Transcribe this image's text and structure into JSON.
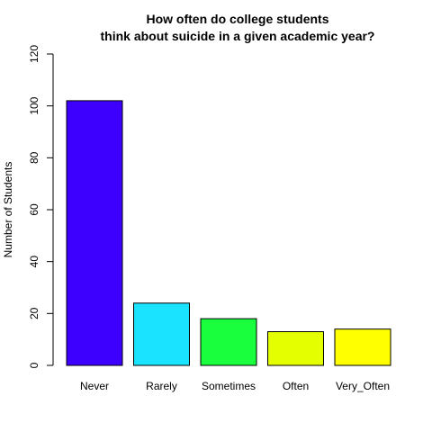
{
  "chart_data": {
    "type": "bar",
    "title_lines": [
      "How often do college students",
      "think about suicide in a given academic year?"
    ],
    "xlabel": "",
    "ylabel": "Number of Students",
    "ylim": [
      0,
      120
    ],
    "y_ticks": [
      0,
      20,
      40,
      60,
      80,
      100,
      120
    ],
    "categories": [
      "Never",
      "Rarely",
      "Sometimes",
      "Often",
      "Very_Often"
    ],
    "values": [
      102,
      24,
      18,
      13,
      14
    ],
    "colors": [
      "#3d00ff",
      "#1ae3ff",
      "#1aff3d",
      "#e3ff00",
      "#ffff00"
    ],
    "bar_border_color": "#000000",
    "grid": false,
    "legend": "none"
  }
}
